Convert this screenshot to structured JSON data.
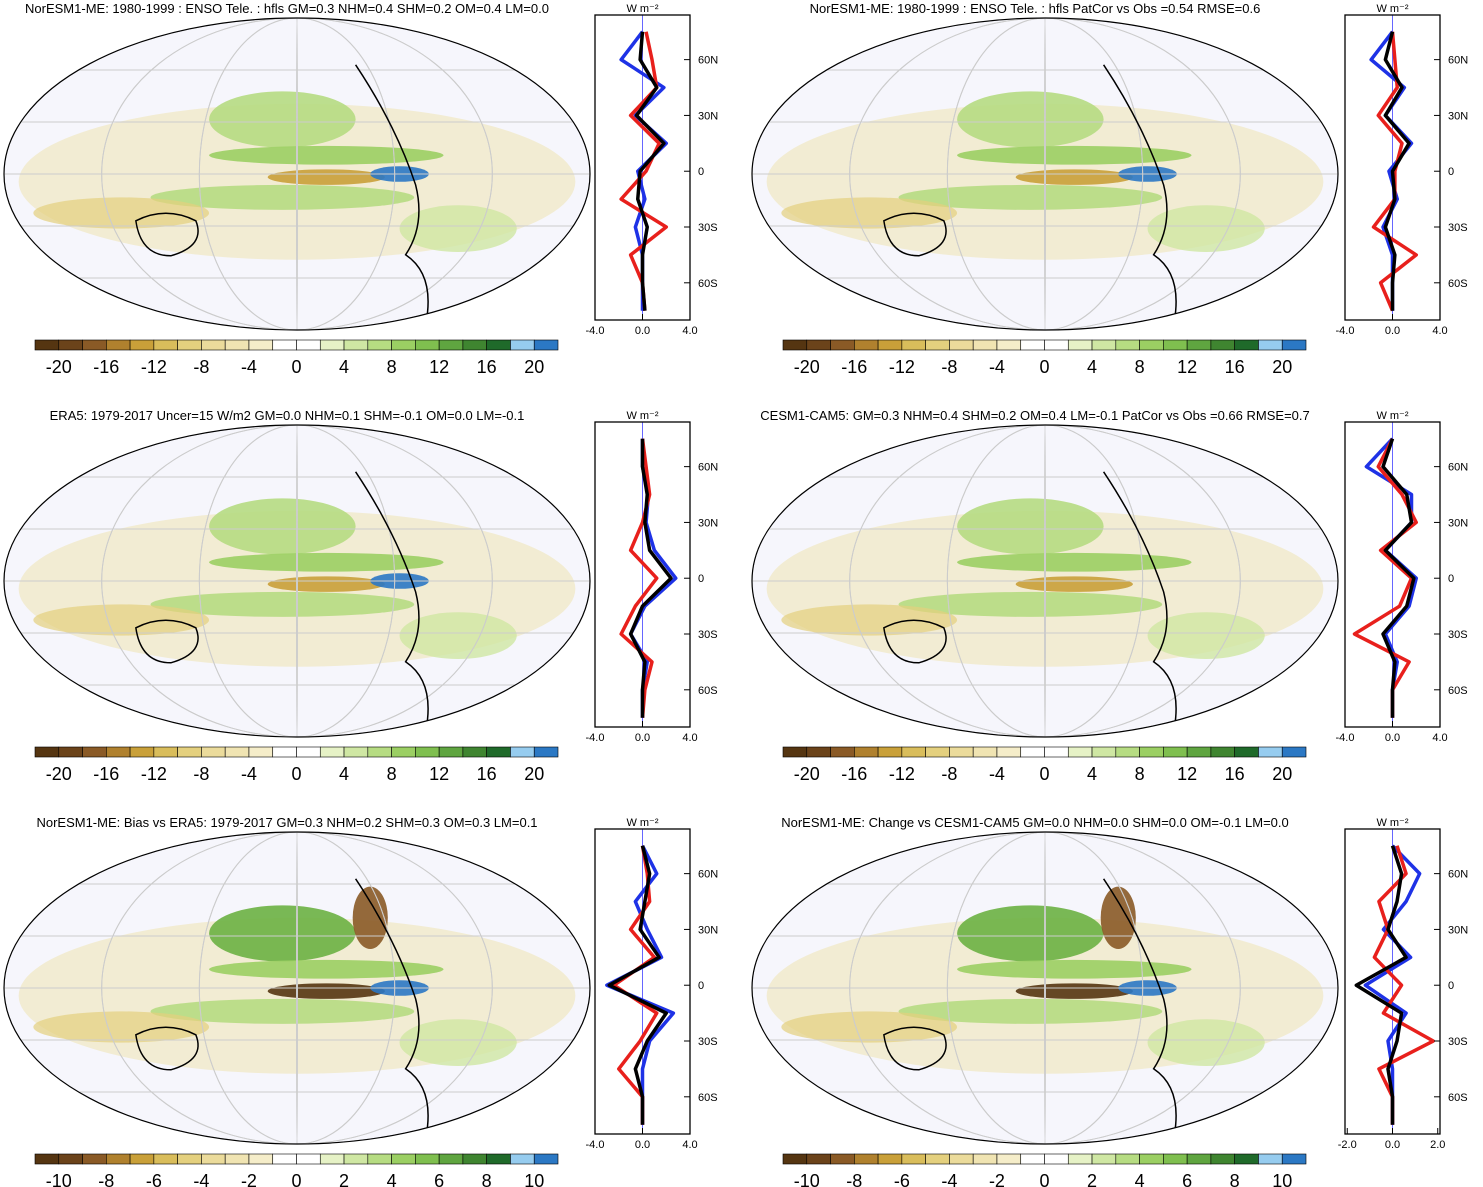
{
  "colors": [
    "#553511",
    "#6b431a",
    "#8a5a26",
    "#b0812e",
    "#c9a039",
    "#d9bd5b",
    "#e4d07e",
    "#ebdb9b",
    "#f0e4b2",
    "#f5edc9",
    "#ffffff",
    "#ffffff",
    "#e6f2c6",
    "#cfe7a3",
    "#b6dc82",
    "#9bcf63",
    "#7fbf4f",
    "#5fa540",
    "#3f8530",
    "#1f6a2a",
    "#96ccef",
    "#2b78c4"
  ],
  "chart_data": [
    {
      "type": "map",
      "title": "NorESM1-ME: 1980-1999 : ENSO Tele. : hfls GM=0.3 NHM=0.4 SHM=0.2 OM=0.4 LM=0.0",
      "colorbar": {
        "levels": [
          -20,
          -18,
          -16,
          -14,
          -12,
          -10,
          -8,
          -6,
          -4,
          -2,
          0,
          2,
          4,
          6,
          8,
          10,
          12,
          14,
          16,
          18,
          20
        ],
        "ticks": [
          -20,
          -16,
          -12,
          -8,
          -4,
          0,
          4,
          8,
          12,
          16,
          20
        ]
      },
      "profile": {
        "type": "line",
        "unit": "W m⁻²",
        "y": [
          75,
          60,
          45,
          30,
          15,
          0,
          -15,
          -30,
          -45,
          -60,
          -75
        ],
        "ylim": [
          -80,
          84
        ],
        "yticks": [
          {
            "value": 60,
            "label": "60N"
          },
          {
            "value": 30,
            "label": "30N"
          },
          0,
          {
            "value": -30,
            "label": "30S"
          },
          {
            "value": -60,
            "label": "60S"
          }
        ],
        "xlim": [
          -4,
          4
        ],
        "xticks": [
          {
            "value": -4,
            "label": "-4.0"
          },
          {
            "value": 0,
            "label": "0.0"
          },
          {
            "value": 4,
            "label": "4.0"
          }
        ],
        "series": [
          {
            "color": "#1e32e6",
            "values": [
              0,
              -1.8,
              1.8,
              -0.6,
              2,
              -0.4,
              0.2,
              -0.6,
              0,
              0,
              0
            ]
          },
          {
            "color": "#e8201c",
            "values": [
              0.3,
              0.8,
              1.2,
              -1,
              1.4,
              0.3,
              -1.8,
              2,
              -1,
              0,
              0.2
            ]
          },
          {
            "color": "#000000",
            "values": [
              0,
              -0.2,
              1.2,
              -0.5,
              1.8,
              -0.2,
              -0.4,
              0.4,
              0,
              0,
              0.2
            ]
          }
        ]
      }
    },
    {
      "type": "map",
      "title": "NorESM1-ME: 1980-1999 : ENSO Tele. : hfls PatCor vs Obs =0.54 RMSE=0.6",
      "colorbar": {
        "levels": [
          -20,
          -18,
          -16,
          -14,
          -12,
          -10,
          -8,
          -6,
          -4,
          -2,
          0,
          2,
          4,
          6,
          8,
          10,
          12,
          14,
          16,
          18,
          20
        ],
        "ticks": [
          -20,
          -16,
          -12,
          -8,
          -4,
          0,
          4,
          8,
          12,
          16,
          20
        ]
      },
      "profile": {
        "type": "line",
        "unit": "W m⁻²",
        "y": [
          75,
          60,
          45,
          30,
          15,
          0,
          -15,
          -30,
          -45,
          -60,
          -75
        ],
        "ylim": [
          -80,
          84
        ],
        "yticks": [
          {
            "value": 60,
            "label": "60N"
          },
          {
            "value": 30,
            "label": "30N"
          },
          0,
          {
            "value": -30,
            "label": "30S"
          },
          {
            "value": -60,
            "label": "60S"
          }
        ],
        "xlim": [
          -4,
          4
        ],
        "xticks": [
          {
            "value": -4,
            "label": "-4.0"
          },
          {
            "value": 0,
            "label": "0.0"
          },
          {
            "value": 4,
            "label": "4.0"
          }
        ],
        "series": [
          {
            "color": "#1e32e6",
            "values": [
              0,
              -1.8,
              1,
              -0.6,
              1.6,
              -0.3,
              0.4,
              -0.8,
              0,
              0,
              0
            ]
          },
          {
            "color": "#e8201c",
            "values": [
              0,
              0.2,
              0.4,
              -1.2,
              0.8,
              0.2,
              0.2,
              -1.6,
              2,
              -1,
              0
            ]
          },
          {
            "color": "#000000",
            "values": [
              0,
              -0.6,
              0.8,
              -0.6,
              1.4,
              0,
              0.2,
              -0.6,
              0.2,
              0,
              0
            ]
          }
        ]
      }
    },
    {
      "type": "map",
      "title": "ERA5: 1979-2017 Uncer=15 W/m2 GM=0.0 NHM=0.1 SHM=-0.1 OM=0.0 LM=-0.1",
      "colorbar": {
        "levels": [
          -20,
          -18,
          -16,
          -14,
          -12,
          -10,
          -8,
          -6,
          -4,
          -2,
          0,
          2,
          4,
          6,
          8,
          10,
          12,
          14,
          16,
          18,
          20
        ],
        "ticks": [
          -20,
          -16,
          -12,
          -8,
          -4,
          0,
          4,
          8,
          12,
          16,
          20
        ]
      },
      "profile": {
        "type": "line",
        "unit": "W m⁻²",
        "y": [
          75,
          60,
          45,
          30,
          15,
          0,
          -15,
          -30,
          -45,
          -60,
          -75
        ],
        "ylim": [
          -80,
          84
        ],
        "yticks": [
          {
            "value": 60,
            "label": "60N"
          },
          {
            "value": 30,
            "label": "30N"
          },
          0,
          {
            "value": -30,
            "label": "30S"
          },
          {
            "value": -60,
            "label": "60S"
          }
        ],
        "xlim": [
          -4,
          4
        ],
        "xticks": [
          {
            "value": -4,
            "label": "-4.0"
          },
          {
            "value": 0,
            "label": "0.0"
          },
          {
            "value": 4,
            "label": "4.0"
          }
        ],
        "series": [
          {
            "color": "#1e32e6",
            "values": [
              0,
              0,
              0.5,
              0.3,
              1,
              2.8,
              0.2,
              -1,
              0.4,
              0,
              0
            ]
          },
          {
            "color": "#e8201c",
            "values": [
              0,
              0.3,
              0.6,
              0,
              -1,
              1.2,
              -0.6,
              -1.8,
              0.8,
              0.2,
              0
            ]
          },
          {
            "color": "#000000",
            "values": [
              0,
              0,
              0.4,
              0.2,
              0.6,
              2.4,
              0,
              -1,
              0.2,
              0,
              0
            ]
          }
        ]
      }
    },
    {
      "type": "map",
      "title": "CESM1-CAM5: GM=0.3 NHM=0.4 SHM=0.2 OM=0.4 LM=-0.1 PatCor vs Obs =0.66 RMSE=0.7",
      "colorbar": {
        "levels": [
          -20,
          -18,
          -16,
          -14,
          -12,
          -10,
          -8,
          -6,
          -4,
          -2,
          0,
          2,
          4,
          6,
          8,
          10,
          12,
          14,
          16,
          18,
          20
        ],
        "ticks": [
          -20,
          -16,
          -12,
          -8,
          -4,
          0,
          4,
          8,
          12,
          16,
          20
        ]
      },
      "profile": {
        "type": "line",
        "unit": "W m⁻²",
        "y": [
          75,
          60,
          45,
          30,
          15,
          0,
          -15,
          -30,
          -45,
          -60,
          -75
        ],
        "ylim": [
          -80,
          84
        ],
        "yticks": [
          {
            "value": 60,
            "label": "60N"
          },
          {
            "value": 30,
            "label": "30N"
          },
          0,
          {
            "value": -30,
            "label": "30S"
          },
          {
            "value": -60,
            "label": "60S"
          }
        ],
        "xlim": [
          -4,
          4
        ],
        "xticks": [
          {
            "value": -4,
            "label": "-4.0"
          },
          {
            "value": 0,
            "label": "0.0"
          },
          {
            "value": 4,
            "label": "4.0"
          }
        ],
        "series": [
          {
            "color": "#1e32e6",
            "values": [
              0,
              -2.2,
              1.6,
              1.6,
              -0.6,
              2,
              1.4,
              -0.6,
              0.4,
              0,
              0
            ]
          },
          {
            "color": "#e8201c",
            "values": [
              0,
              -1.2,
              0.8,
              2,
              -1,
              1.6,
              0.6,
              -3.2,
              1.4,
              0,
              0
            ]
          },
          {
            "color": "#000000",
            "values": [
              0,
              -0.8,
              1.2,
              1.6,
              -0.6,
              1.8,
              1.2,
              -0.8,
              0.2,
              0,
              0
            ]
          }
        ]
      }
    },
    {
      "type": "map",
      "title": "NorESM1-ME: Bias vs ERA5: 1979-2017 GM=0.3 NHM=0.2 SHM=0.3 OM=0.3 LM=0.1",
      "colorbar": {
        "levels": [
          -10,
          -9,
          -8,
          -7,
          -6,
          -5,
          -4,
          -3,
          -2,
          -1,
          0,
          1,
          2,
          3,
          4,
          5,
          6,
          7,
          8,
          9,
          10
        ],
        "ticks": [
          -10,
          -8,
          -6,
          -4,
          -2,
          0,
          2,
          4,
          6,
          8,
          10
        ]
      },
      "profile": {
        "type": "line",
        "unit": "W m⁻²",
        "y": [
          75,
          60,
          45,
          30,
          15,
          0,
          -15,
          -30,
          -45,
          -60,
          -75
        ],
        "ylim": [
          -80,
          84
        ],
        "yticks": [
          {
            "value": 60,
            "label": "60N"
          },
          {
            "value": 30,
            "label": "30N"
          },
          0,
          {
            "value": -30,
            "label": "30S"
          },
          {
            "value": -60,
            "label": "60S"
          }
        ],
        "xlim": [
          -4,
          4
        ],
        "xticks": [
          {
            "value": -4,
            "label": "-4.0"
          },
          {
            "value": 0,
            "label": "0.0"
          },
          {
            "value": 4,
            "label": "4.0"
          }
        ],
        "series": [
          {
            "color": "#1e32e6",
            "values": [
              0,
              1.2,
              -0.6,
              0.4,
              1.6,
              -3,
              2.6,
              0.6,
              0,
              0,
              0
            ]
          },
          {
            "color": "#e8201c",
            "values": [
              0,
              0.4,
              0.6,
              -1,
              1,
              -2.4,
              1.2,
              -0.2,
              -2,
              0,
              0
            ]
          },
          {
            "color": "#000000",
            "values": [
              0,
              0.6,
              0.2,
              -0.2,
              1.4,
              -2.8,
              2,
              0.4,
              -0.6,
              0,
              0
            ]
          }
        ]
      }
    },
    {
      "type": "map",
      "title": "NorESM1-ME: Change vs CESM1-CAM5 GM=0.0 NHM=0.0 SHM=0.0 OM=-0.1 LM=0.0",
      "colorbar": {
        "levels": [
          -10,
          -9,
          -8,
          -7,
          -6,
          -5,
          -4,
          -3,
          -2,
          -1,
          0,
          1,
          2,
          3,
          4,
          5,
          6,
          7,
          8,
          9,
          10
        ],
        "ticks": [
          -10,
          -8,
          -6,
          -4,
          -2,
          0,
          2,
          4,
          6,
          8,
          10
        ]
      },
      "profile": {
        "type": "line",
        "unit": "W m⁻²",
        "y": [
          75,
          60,
          45,
          30,
          15,
          0,
          -15,
          -30,
          -45,
          -60,
          -75
        ],
        "ylim": [
          -80,
          84
        ],
        "yticks": [
          {
            "value": 60,
            "label": "60N"
          },
          {
            "value": 30,
            "label": "30N"
          },
          0,
          {
            "value": -30,
            "label": "30S"
          },
          {
            "value": -60,
            "label": "60S"
          }
        ],
        "xlim": [
          -2.1,
          2.1
        ],
        "xticks": [
          {
            "value": -2,
            "label": "-2.0"
          },
          {
            "value": 0,
            "label": "0.0"
          },
          {
            "value": 2,
            "label": "2.0"
          }
        ],
        "series": [
          {
            "color": "#1e32e6",
            "values": [
              0,
              1.2,
              0.6,
              -0.4,
              0.8,
              -1.2,
              0.6,
              -0.2,
              0,
              0,
              0
            ]
          },
          {
            "color": "#e8201c",
            "values": [
              0.2,
              0.6,
              -0.6,
              -0.2,
              -0.8,
              0.4,
              -0.4,
              1.8,
              -0.6,
              0,
              0
            ]
          },
          {
            "color": "#000000",
            "values": [
              0,
              0.4,
              0.2,
              -0.2,
              0.6,
              -1.6,
              0.4,
              0.2,
              -0.2,
              0,
              0
            ]
          }
        ]
      }
    }
  ]
}
